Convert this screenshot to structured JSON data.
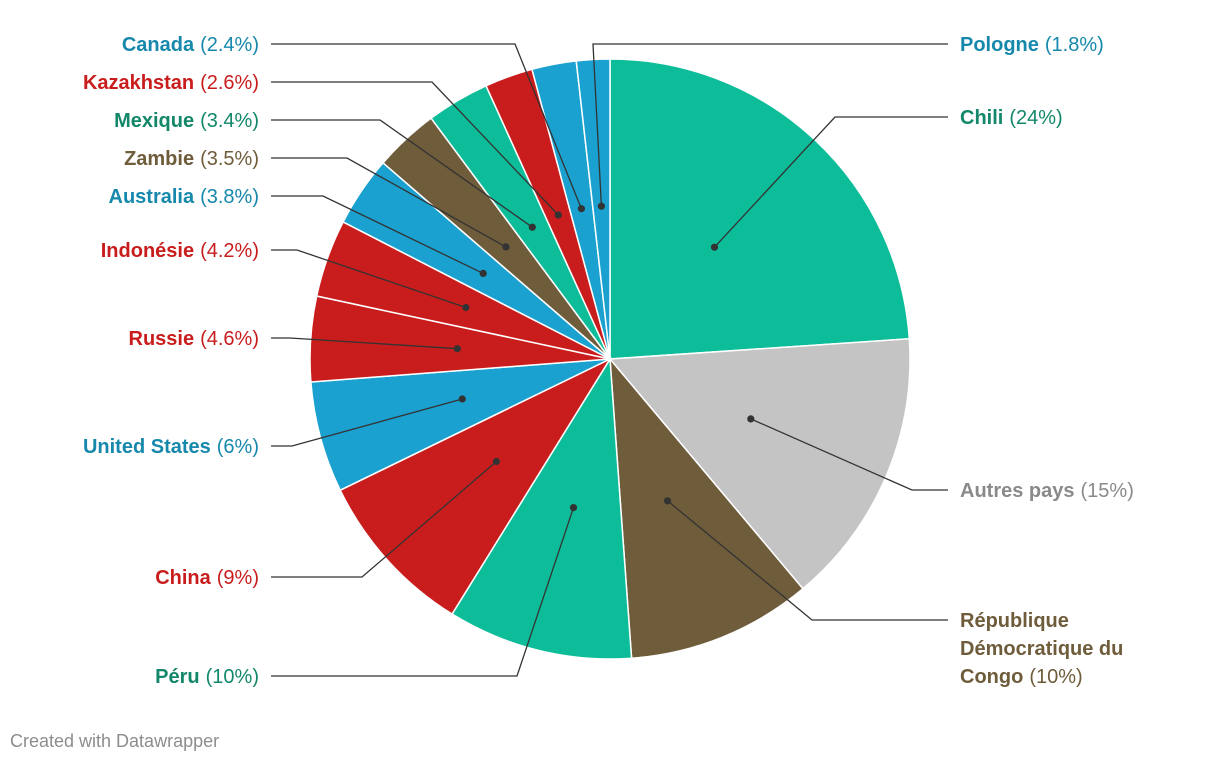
{
  "chart_data": {
    "type": "pie",
    "slices": [
      {
        "label": "Chili",
        "value": 24,
        "value_label": "(24%)",
        "color": "#0dbd9a",
        "text_color": "#12876a"
      },
      {
        "label": "Autres pays",
        "value": 15,
        "value_label": "(15%)",
        "color": "#c4c4c4",
        "text_color": "#8a8a8a"
      },
      {
        "label": "République Démocratique du Congo",
        "value": 10,
        "value_label": "(10%)",
        "color": "#6e5c3b",
        "text_color": "#6e5c3b"
      },
      {
        "label": "Péru",
        "value": 10,
        "value_label": "(10%)",
        "color": "#0dbd9a",
        "text_color": "#12876a"
      },
      {
        "label": "China",
        "value": 9,
        "value_label": "(9%)",
        "color": "#c91d1d",
        "text_color": "#c91d1d"
      },
      {
        "label": "United States",
        "value": 6,
        "value_label": "(6%)",
        "color": "#1ba1cf",
        "text_color": "#1688ac"
      },
      {
        "label": "Russie",
        "value": 4.6,
        "value_label": "(4.6%)",
        "color": "#c91d1d",
        "text_color": "#c91d1d"
      },
      {
        "label": "Indonésie",
        "value": 4.2,
        "value_label": "(4.2%)",
        "color": "#c91d1d",
        "text_color": "#c91d1d"
      },
      {
        "label": "Australia",
        "value": 3.8,
        "value_label": "(3.8%)",
        "color": "#1ba1cf",
        "text_color": "#1688ac"
      },
      {
        "label": "Zambie",
        "value": 3.5,
        "value_label": "(3.5%)",
        "color": "#6e5c3b",
        "text_color": "#6e5c3b"
      },
      {
        "label": "Mexique",
        "value": 3.4,
        "value_label": "(3.4%)",
        "color": "#0dbd9a",
        "text_color": "#12876a"
      },
      {
        "label": "Kazakhstan",
        "value": 2.6,
        "value_label": "(2.6%)",
        "color": "#c91d1d",
        "text_color": "#c91d1d"
      },
      {
        "label": "Canada",
        "value": 2.4,
        "value_label": "(2.4%)",
        "color": "#1ba1cf",
        "text_color": "#1688ac"
      },
      {
        "label": "Pologne",
        "value": 1.8,
        "value_label": "(1.8%)",
        "color": "#1ba1cf",
        "text_color": "#1688ac"
      }
    ]
  },
  "footer": {
    "credit": "Created with Datawrapper"
  }
}
